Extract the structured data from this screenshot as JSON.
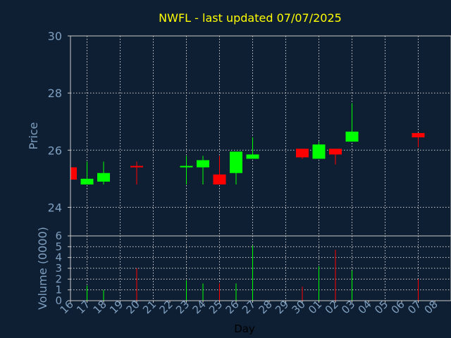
{
  "chart_data": {
    "type": "candlestick",
    "title": "NWFL - last updated 07/07/2025",
    "xlabel": "Day",
    "price_panel": {
      "ylabel": "Price",
      "ylim": [
        23,
        30
      ],
      "yticks": [
        "24",
        "26",
        "28",
        "30"
      ]
    },
    "volume_panel": {
      "ylabel": "Volume (0000)",
      "ylim": [
        0,
        6
      ],
      "yticks": [
        "0",
        "1",
        "2",
        "3",
        "4",
        "5",
        "6"
      ]
    },
    "x_ticks": [
      "16",
      "17",
      "18",
      "19",
      "20",
      "21",
      "22",
      "23",
      "24",
      "25",
      "26",
      "27",
      "28",
      "29",
      "30",
      "01",
      "02",
      "03",
      "04",
      "05",
      "06",
      "07",
      "08"
    ],
    "candles": [
      {
        "x": "16",
        "open": 25.4,
        "high": 25.4,
        "low": 24.97,
        "close": 24.97,
        "volume": 0.9
      },
      {
        "x": "17",
        "open": 24.8,
        "high": 25.6,
        "low": 24.8,
        "close": 25.0,
        "volume": 1.4
      },
      {
        "x": "18",
        "open": 24.9,
        "high": 25.6,
        "low": 24.8,
        "close": 25.2,
        "volume": 1.0
      },
      {
        "x": "20",
        "open": 25.45,
        "high": 25.6,
        "low": 24.8,
        "close": 25.4,
        "volume": 3.0
      },
      {
        "x": "23",
        "open": 25.4,
        "high": 25.8,
        "low": 24.8,
        "close": 25.45,
        "volume": 1.9
      },
      {
        "x": "24",
        "open": 25.4,
        "high": 25.8,
        "low": 24.8,
        "close": 25.65,
        "volume": 1.6
      },
      {
        "x": "25",
        "open": 25.15,
        "high": 25.8,
        "low": 24.8,
        "close": 24.8,
        "volume": 1.6
      },
      {
        "x": "26",
        "open": 25.2,
        "high": 25.95,
        "low": 24.8,
        "close": 25.95,
        "volume": 1.6
      },
      {
        "x": "27",
        "open": 25.7,
        "high": 26.45,
        "low": 25.7,
        "close": 25.85,
        "volume": 5.1
      },
      {
        "x": "30",
        "open": 26.05,
        "high": 26.05,
        "low": 25.7,
        "close": 25.75,
        "volume": 1.3
      },
      {
        "x": "01",
        "open": 25.7,
        "high": 26.3,
        "low": 25.7,
        "close": 26.2,
        "volume": 3.2
      },
      {
        "x": "02",
        "open": 26.05,
        "high": 26.05,
        "low": 25.5,
        "close": 25.85,
        "volume": 4.7
      },
      {
        "x": "03",
        "open": 26.3,
        "high": 27.65,
        "low": 26.3,
        "close": 26.65,
        "volume": 2.8
      },
      {
        "x": "07",
        "open": 26.6,
        "high": 26.6,
        "low": 26.1,
        "close": 26.45,
        "volume": 2.0
      }
    ],
    "colors": {
      "background": "#0f1f33",
      "title": "#ffff00",
      "axis_text": "#7f9fbf",
      "frame": "#c8c8c8",
      "grid": "#d0d0d0",
      "up": "#00ff00",
      "down": "#ff0000"
    }
  }
}
